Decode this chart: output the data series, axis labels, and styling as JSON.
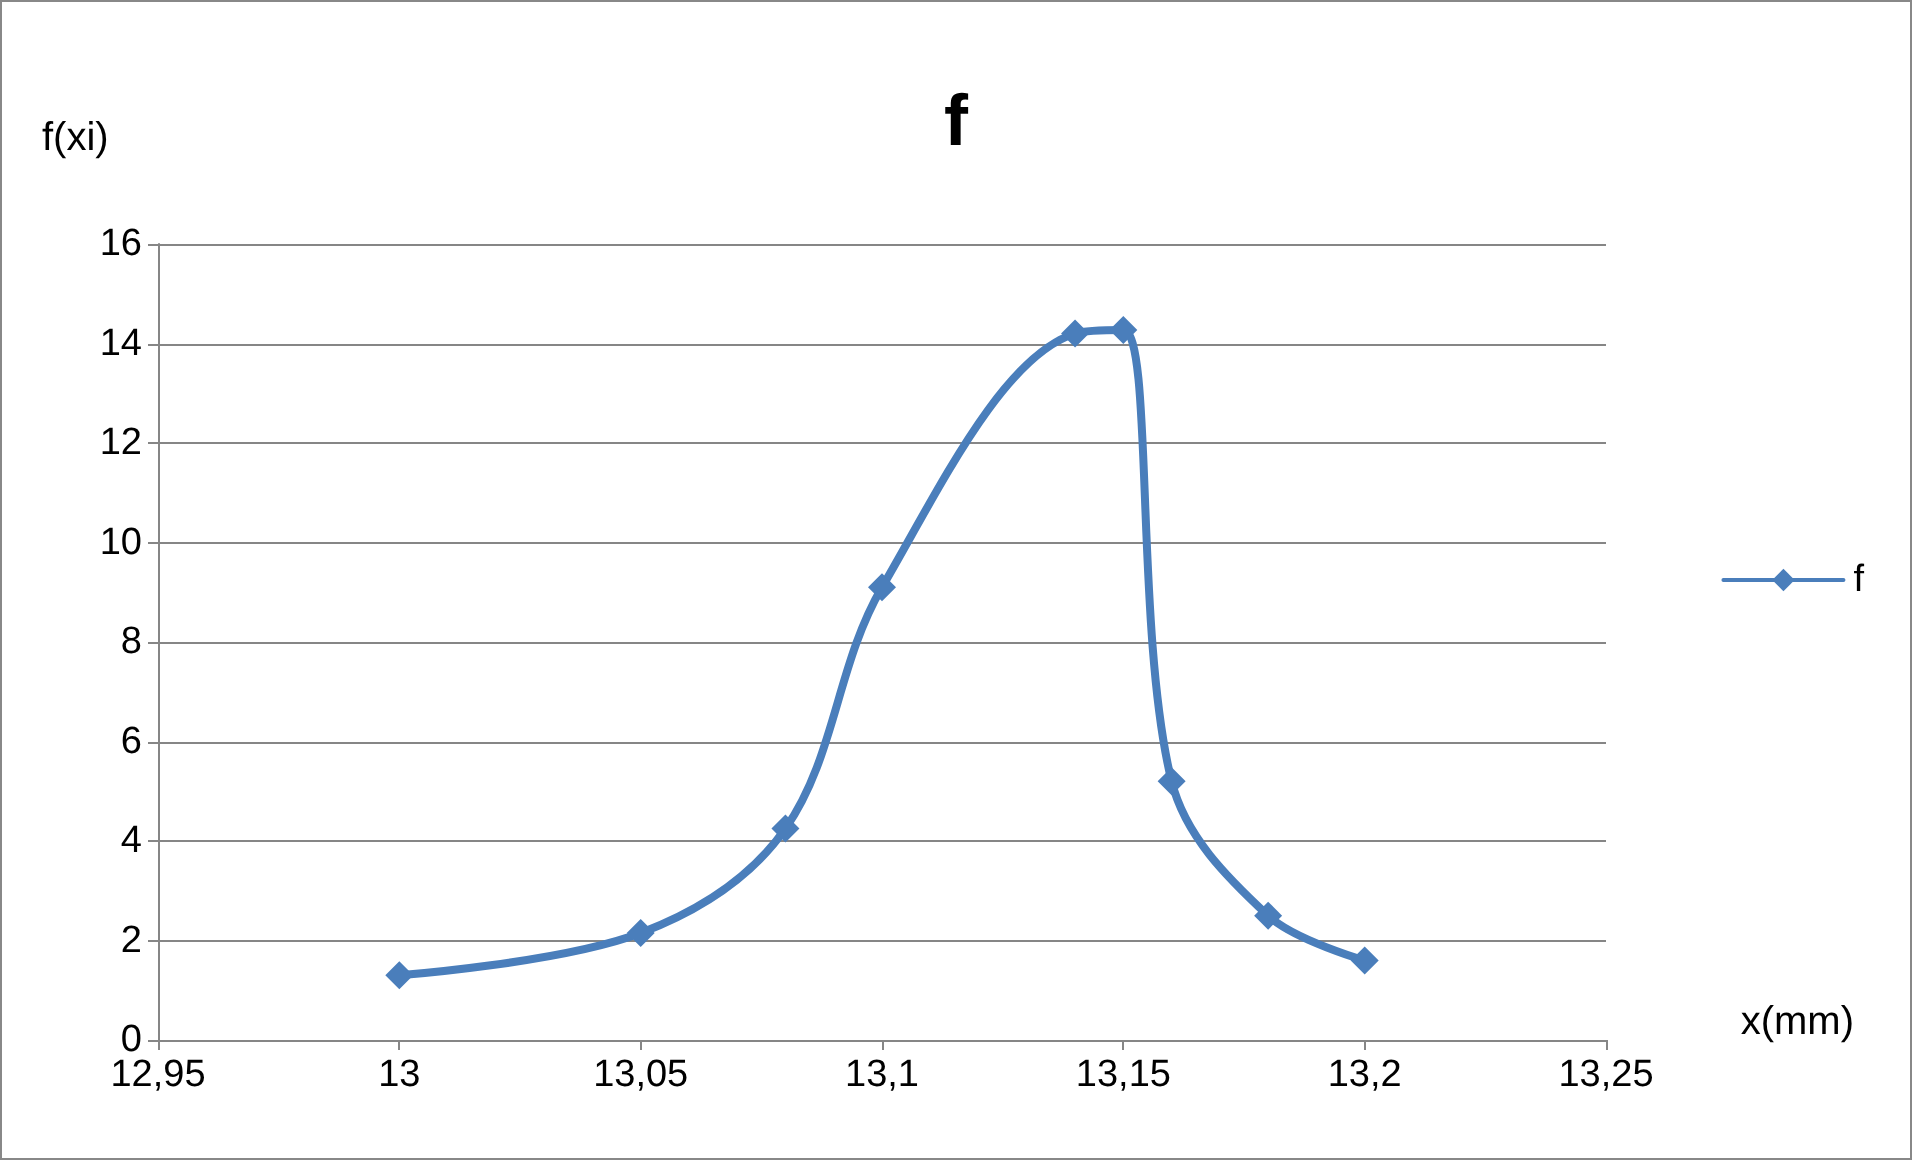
{
  "chart_data": {
    "type": "line",
    "title": "f",
    "xlabel": "x(mm)",
    "ylabel": "f(xi)",
    "x": [
      13,
      13.05,
      13.08,
      13.1,
      13.14,
      13.15,
      13.16,
      13.18,
      13.2
    ],
    "series": [
      {
        "name": "f",
        "color": "#4a7ebb",
        "values": [
          1.3,
          2.15,
          4.25,
          9.1,
          14.2,
          14.27,
          5.2,
          2.5,
          1.6
        ]
      }
    ],
    "xlim": [
      12.95,
      13.25
    ],
    "xticks": [
      {
        "value": 12.95,
        "label": "12,95"
      },
      {
        "value": 13,
        "label": "13"
      },
      {
        "value": 13.05,
        "label": "13,05"
      },
      {
        "value": 13.1,
        "label": "13,1"
      },
      {
        "value": 13.15,
        "label": "13,15"
      },
      {
        "value": 13.2,
        "label": "13,2"
      },
      {
        "value": 13.25,
        "label": "13,25"
      }
    ],
    "ylim": [
      0,
      16
    ],
    "yticks": [
      0,
      2,
      4,
      6,
      8,
      10,
      12,
      14,
      16
    ],
    "grid": "y",
    "legend": "right",
    "marker": "diamond",
    "line_style": "solid"
  }
}
